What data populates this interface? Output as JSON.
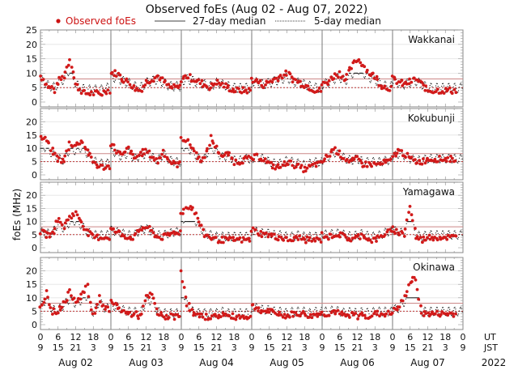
{
  "chart_data": {
    "type": "scatter",
    "title": "Observed foEs (Aug 02 - Aug 07, 2022)",
    "ylabel": "foEs (MHz)",
    "legend": {
      "placement": "top",
      "entries": [
        {
          "label": "Observed foEs",
          "style": "red-dot",
          "color": "#cc1111"
        },
        {
          "label": "27-day median",
          "style": "solid-line",
          "color": "#000000"
        },
        {
          "label": "5-day median",
          "style": "dotted-line",
          "color": "#000000"
        }
      ]
    },
    "ylim": [
      0,
      25
    ],
    "yticks": [
      "0",
      "5",
      "10",
      "15",
      "20",
      "25"
    ],
    "yticks_lower_panels": [
      "0",
      "5",
      "10",
      "15",
      "20"
    ],
    "x_ticks_ut": [
      "0",
      "6",
      "12",
      "18",
      "0",
      "6",
      "12",
      "18",
      "0",
      "6",
      "12",
      "18",
      "0",
      "6",
      "12",
      "18",
      "0",
      "6",
      "12",
      "18",
      "0",
      "6",
      "12",
      "18",
      "0"
    ],
    "x_ticks_jst": [
      "9",
      "15",
      "21",
      "3",
      "9",
      "15",
      "21",
      "3",
      "9",
      "15",
      "21",
      "3",
      "9",
      "15",
      "21",
      "3",
      "9",
      "15",
      "21",
      "3",
      "9",
      "15",
      "21",
      "3",
      "9"
    ],
    "x_tick_row_labels": [
      "UT",
      "JST"
    ],
    "days": [
      "Aug 02",
      "Aug 03",
      "Aug 04",
      "Aug 05",
      "Aug 06",
      "Aug 07"
    ],
    "year": "2022",
    "reference_lines": {
      "upper_red_line_mhz": 8,
      "lower_red_dotted_line_mhz": 5
    },
    "panels": [
      {
        "station": "Wakkanai",
        "observed_daily_profile": [
          {
            "day": "Aug 02",
            "hours": [
              0,
              1,
              2,
              3,
              4,
              5,
              6,
              7,
              8,
              9,
              10,
              11,
              12,
              13,
              14,
              15,
              16,
              17,
              18,
              19,
              20,
              21,
              22,
              23
            ],
            "foEs": [
              9,
              8,
              6,
              5,
              5,
              4,
              7,
              8,
              9,
              12,
              15,
              11,
              6,
              5,
              4,
              3,
              3,
              3,
              3,
              3,
              3,
              3,
              4,
              4
            ]
          },
          {
            "day": "Aug 03",
            "hours": [
              0,
              2,
              4,
              6,
              8,
              10,
              12,
              14,
              16,
              18,
              20,
              22
            ],
            "foEs": [
              10,
              10,
              8,
              7,
              5,
              4,
              7,
              8,
              9,
              7,
              5,
              5
            ]
          },
          {
            "day": "Aug 04",
            "hours": [
              0,
              2,
              4,
              6,
              8,
              10,
              12,
              14,
              16,
              18,
              20,
              22
            ],
            "foEs": [
              8,
              9,
              8,
              7,
              6,
              5,
              7,
              6,
              5,
              4,
              4,
              4
            ]
          },
          {
            "day": "Aug 05",
            "hours": [
              0,
              2,
              4,
              6,
              8,
              10,
              12,
              14,
              16,
              18,
              20,
              22
            ],
            "foEs": [
              8,
              7,
              6,
              7,
              8,
              9,
              10,
              8,
              7,
              6,
              5,
              4
            ]
          },
          {
            "day": "Aug 06",
            "hours": [
              0,
              2,
              4,
              6,
              8,
              10,
              12,
              14,
              16,
              18,
              20,
              22
            ],
            "foEs": [
              6,
              7,
              9,
              10,
              8,
              12,
              15,
              13,
              10,
              9,
              6,
              5
            ]
          },
          {
            "day": "Aug 07",
            "hours": [
              0,
              2,
              4,
              6,
              8,
              10,
              12
            ],
            "foEs": [
              8,
              7,
              6,
              7,
              8,
              6,
              4
            ]
          }
        ]
      },
      {
        "station": "Kokubunji",
        "observed_daily_profile": [
          {
            "day": "Aug 02",
            "hours": [
              0,
              2,
              4,
              6,
              8,
              10,
              12,
              14,
              16,
              18,
              20,
              22
            ],
            "foEs": [
              14,
              13,
              9,
              6,
              5,
              12,
              11,
              13,
              9,
              5,
              3,
              3
            ]
          },
          {
            "day": "Aug 03",
            "hours": [
              0,
              2,
              4,
              6,
              8,
              10,
              12,
              14,
              16,
              18,
              20,
              22
            ],
            "foEs": [
              12,
              9,
              7,
              10,
              6,
              8,
              9,
              7,
              5,
              9,
              5,
              4
            ]
          },
          {
            "day": "Aug 04",
            "hours": [
              0,
              2,
              4,
              6,
              8,
              10,
              12,
              14,
              16,
              18,
              20,
              22
            ],
            "foEs": [
              14,
              13,
              10,
              6,
              6,
              14,
              10,
              7,
              8,
              5,
              5,
              6
            ]
          },
          {
            "day": "Aug 05",
            "hours": [
              0,
              2,
              4,
              6,
              8,
              10,
              12,
              14,
              16,
              18,
              20,
              22
            ],
            "foEs": [
              6,
              7,
              6,
              4,
              3,
              3,
              5,
              4,
              3,
              2,
              3,
              4
            ]
          },
          {
            "day": "Aug 06",
            "hours": [
              0,
              2,
              4,
              6,
              8,
              10,
              12,
              14,
              16,
              18,
              20,
              22
            ],
            "foEs": [
              5,
              7,
              10,
              8,
              6,
              5,
              6,
              4,
              4,
              4,
              4,
              5
            ]
          },
          {
            "day": "Aug 07",
            "hours": [
              0,
              2,
              4,
              6,
              8,
              10,
              12
            ],
            "foEs": [
              7,
              9,
              8,
              6,
              5,
              5,
              6
            ]
          }
        ]
      },
      {
        "station": "Yamagawa",
        "observed_daily_profile": [
          {
            "day": "Aug 02",
            "hours": [
              0,
              2,
              4,
              6,
              8,
              10,
              12,
              14,
              16,
              18,
              20,
              22
            ],
            "foEs": [
              6,
              5,
              5,
              11,
              8,
              12,
              13,
              10,
              6,
              4,
              4,
              4
            ]
          },
          {
            "day": "Aug 03",
            "hours": [
              0,
              2,
              4,
              6,
              8,
              10,
              12,
              14,
              16,
              18,
              20,
              22
            ],
            "foEs": [
              7,
              6,
              5,
              4,
              4,
              7,
              8,
              6,
              4,
              4,
              5,
              6
            ]
          },
          {
            "day": "Aug 04",
            "hours": [
              0,
              2,
              4,
              6,
              8,
              10,
              12,
              14,
              16,
              18,
              20,
              22
            ],
            "foEs": [
              13,
              16,
              15,
              10,
              5,
              4,
              3,
              3,
              3,
              3,
              3,
              3
            ]
          },
          {
            "day": "Aug 05",
            "hours": [
              0,
              2,
              4,
              6,
              8,
              10,
              12,
              14,
              16,
              18,
              20,
              22
            ],
            "foEs": [
              7,
              6,
              5,
              5,
              4,
              4,
              3,
              3,
              4,
              3,
              3,
              3
            ]
          },
          {
            "day": "Aug 06",
            "hours": [
              0,
              2,
              4,
              6,
              8,
              10,
              12,
              14,
              16,
              18,
              20,
              22
            ],
            "foEs": [
              5,
              4,
              5,
              5,
              4,
              3,
              4,
              5,
              3,
              3,
              4,
              6
            ]
          },
          {
            "day": "Aug 07",
            "hours": [
              0,
              2,
              4,
              6,
              8,
              10,
              12
            ],
            "foEs": [
              7,
              6,
              5,
              16,
              4,
              3,
              4
            ]
          }
        ]
      },
      {
        "station": "Okinawa",
        "observed_daily_profile": [
          {
            "day": "Aug 02",
            "hours": [
              0,
              2,
              4,
              6,
              8,
              10,
              12,
              14,
              16,
              18,
              20,
              22
            ],
            "foEs": [
              6,
              12,
              5,
              5,
              8,
              12,
              9,
              11,
              14,
              3,
              10,
              6
            ]
          },
          {
            "day": "Aug 03",
            "hours": [
              0,
              2,
              4,
              6,
              8,
              10,
              12,
              14,
              16,
              18,
              20,
              22
            ],
            "foEs": [
              8,
              7,
              5,
              4,
              4,
              3,
              10,
              11,
              4,
              3,
              3,
              3
            ]
          },
          {
            "day": "Aug 04",
            "hours": [
              0,
              2,
              4,
              6,
              8,
              10,
              12,
              14,
              16,
              18,
              20,
              22
            ],
            "foEs": [
              20,
              8,
              4,
              3,
              3,
              3,
              3,
              4,
              3,
              3,
              3,
              3
            ]
          },
          {
            "day": "Aug 05",
            "hours": [
              0,
              2,
              4,
              6,
              8,
              10,
              12,
              14,
              16,
              18,
              20,
              22
            ],
            "foEs": [
              7,
              6,
              5,
              5,
              4,
              4,
              3,
              4,
              4,
              4,
              3,
              4
            ]
          },
          {
            "day": "Aug 06",
            "hours": [
              0,
              2,
              4,
              6,
              8,
              10,
              12,
              14,
              16,
              18,
              20,
              22
            ],
            "foEs": [
              4,
              4,
              5,
              4,
              3,
              4,
              3,
              4,
              3,
              4,
              4,
              4
            ]
          },
          {
            "day": "Aug 07",
            "hours": [
              0,
              2,
              4,
              6,
              8,
              10,
              12
            ],
            "foEs": [
              5,
              6,
              10,
              16,
              17,
              4,
              4
            ]
          }
        ]
      }
    ]
  }
}
